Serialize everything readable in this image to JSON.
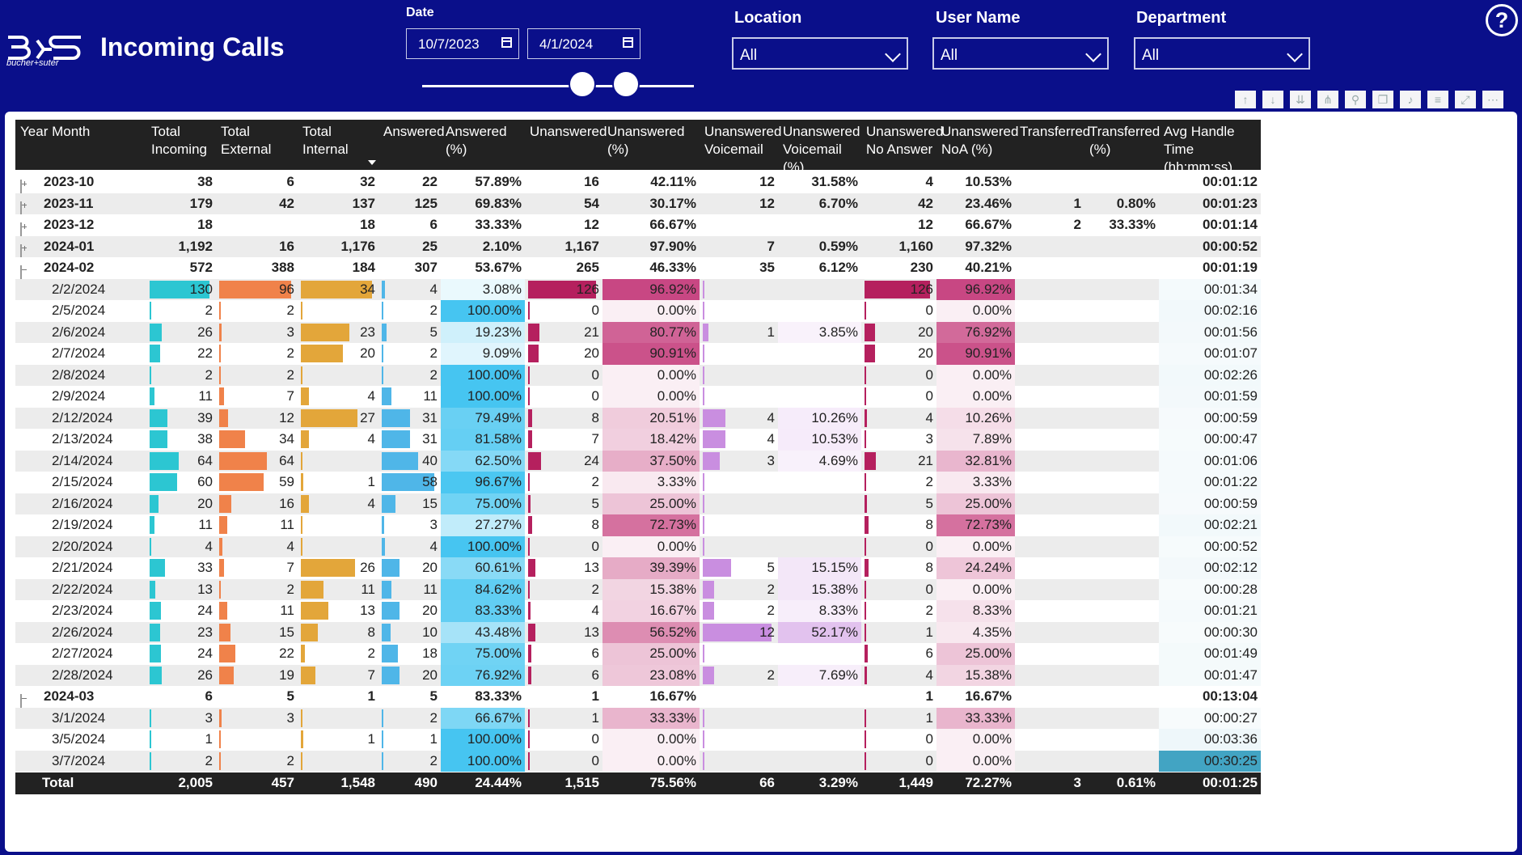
{
  "header": {
    "title": "Incoming Calls",
    "logo_sub": "bucher+suter",
    "date_label": "Date",
    "date_from": "10/7/2023",
    "date_to": "4/1/2024",
    "filters": [
      {
        "label": "Location",
        "value": "All"
      },
      {
        "label": "User Name",
        "value": "All"
      },
      {
        "label": "Department",
        "value": "All"
      }
    ],
    "help": "?"
  },
  "colors": {
    "header_bg": "#0a0f8a",
    "total_incoming": "#2cc6d2",
    "total_external": "#f0824a",
    "total_internal": "#e3a63a",
    "answered": "#4fb6e8",
    "answered_pct": "#3ec3f0",
    "unanswered": "#b5205e",
    "unanswered_pct": "#c43a7a",
    "voicemail": "#c98ee0",
    "aht": "#3aa0c0"
  },
  "table": {
    "columns": [
      "Year Month",
      "Total Incoming",
      "Total External",
      "Total Internal",
      "Answered",
      "Answered (%)",
      "Unanswered",
      "Unanswered (%)",
      "Unanswered Voicemail",
      "Unanswered Voicemail (%)",
      "Unanswered No Answer",
      "Unanswered NoA (%)",
      "Transferred",
      "Transferred (%)",
      "Avg Handle Time (hh:mm:ss)"
    ],
    "rows": [
      {
        "type": "month",
        "label": "2023-10",
        "expanded": false,
        "v": [
          "38",
          "6",
          "32",
          "22",
          "57.89%",
          "16",
          "42.11%",
          "12",
          "31.58%",
          "4",
          "10.53%",
          "",
          "",
          "00:01:12"
        ]
      },
      {
        "type": "month",
        "label": "2023-11",
        "expanded": false,
        "v": [
          "179",
          "42",
          "137",
          "125",
          "69.83%",
          "54",
          "30.17%",
          "12",
          "6.70%",
          "42",
          "23.46%",
          "1",
          "0.80%",
          "00:01:23"
        ]
      },
      {
        "type": "month",
        "label": "2023-12",
        "expanded": false,
        "v": [
          "18",
          "",
          "18",
          "6",
          "33.33%",
          "12",
          "66.67%",
          "",
          "",
          "12",
          "66.67%",
          "2",
          "33.33%",
          "00:01:14"
        ]
      },
      {
        "type": "month",
        "label": "2024-01",
        "expanded": false,
        "v": [
          "1,192",
          "16",
          "1,176",
          "25",
          "2.10%",
          "1,167",
          "97.90%",
          "7",
          "0.59%",
          "1,160",
          "97.32%",
          "",
          "",
          "00:00:52"
        ]
      },
      {
        "type": "month",
        "label": "2024-02",
        "expanded": true,
        "v": [
          "572",
          "388",
          "184",
          "307",
          "53.67%",
          "265",
          "46.33%",
          "35",
          "6.12%",
          "230",
          "40.21%",
          "",
          "",
          "00:01:19"
        ]
      },
      {
        "type": "day",
        "label": "2/2/2024",
        "v": [
          "130",
          "96",
          "34",
          "4",
          "3.08%",
          "126",
          "96.92%",
          "",
          "",
          "126",
          "96.92%",
          "",
          "",
          "00:01:34"
        ]
      },
      {
        "type": "day",
        "label": "2/5/2024",
        "v": [
          "2",
          "2",
          "",
          "2",
          "100.00%",
          "0",
          "0.00%",
          "",
          "",
          "0",
          "0.00%",
          "",
          "",
          "00:02:16"
        ]
      },
      {
        "type": "day",
        "label": "2/6/2024",
        "v": [
          "26",
          "3",
          "23",
          "5",
          "19.23%",
          "21",
          "80.77%",
          "1",
          "3.85%",
          "20",
          "76.92%",
          "",
          "",
          "00:01:56"
        ]
      },
      {
        "type": "day",
        "label": "2/7/2024",
        "v": [
          "22",
          "2",
          "20",
          "2",
          "9.09%",
          "20",
          "90.91%",
          "",
          "",
          "20",
          "90.91%",
          "",
          "",
          "00:01:07"
        ]
      },
      {
        "type": "day",
        "label": "2/8/2024",
        "v": [
          "2",
          "2",
          "",
          "2",
          "100.00%",
          "0",
          "0.00%",
          "",
          "",
          "0",
          "0.00%",
          "",
          "",
          "00:02:26"
        ]
      },
      {
        "type": "day",
        "label": "2/9/2024",
        "v": [
          "11",
          "7",
          "4",
          "11",
          "100.00%",
          "0",
          "0.00%",
          "",
          "",
          "0",
          "0.00%",
          "",
          "",
          "00:01:59"
        ]
      },
      {
        "type": "day",
        "label": "2/12/2024",
        "v": [
          "39",
          "12",
          "27",
          "31",
          "79.49%",
          "8",
          "20.51%",
          "4",
          "10.26%",
          "4",
          "10.26%",
          "",
          "",
          "00:00:59"
        ]
      },
      {
        "type": "day",
        "label": "2/13/2024",
        "v": [
          "38",
          "34",
          "4",
          "31",
          "81.58%",
          "7",
          "18.42%",
          "4",
          "10.53%",
          "3",
          "7.89%",
          "",
          "",
          "00:00:47"
        ]
      },
      {
        "type": "day",
        "label": "2/14/2024",
        "v": [
          "64",
          "64",
          "",
          "40",
          "62.50%",
          "24",
          "37.50%",
          "3",
          "4.69%",
          "21",
          "32.81%",
          "",
          "",
          "00:01:06"
        ]
      },
      {
        "type": "day",
        "label": "2/15/2024",
        "v": [
          "60",
          "59",
          "1",
          "58",
          "96.67%",
          "2",
          "3.33%",
          "",
          "",
          "2",
          "3.33%",
          "",
          "",
          "00:01:22"
        ]
      },
      {
        "type": "day",
        "label": "2/16/2024",
        "v": [
          "20",
          "16",
          "4",
          "15",
          "75.00%",
          "5",
          "25.00%",
          "",
          "",
          "5",
          "25.00%",
          "",
          "",
          "00:00:59"
        ]
      },
      {
        "type": "day",
        "label": "2/19/2024",
        "v": [
          "11",
          "11",
          "",
          "3",
          "27.27%",
          "8",
          "72.73%",
          "",
          "",
          "8",
          "72.73%",
          "",
          "",
          "00:02:21"
        ]
      },
      {
        "type": "day",
        "label": "2/20/2024",
        "v": [
          "4",
          "4",
          "",
          "4",
          "100.00%",
          "0",
          "0.00%",
          "",
          "",
          "0",
          "0.00%",
          "",
          "",
          "00:00:52"
        ]
      },
      {
        "type": "day",
        "label": "2/21/2024",
        "v": [
          "33",
          "7",
          "26",
          "20",
          "60.61%",
          "13",
          "39.39%",
          "5",
          "15.15%",
          "8",
          "24.24%",
          "",
          "",
          "00:02:12"
        ]
      },
      {
        "type": "day",
        "label": "2/22/2024",
        "v": [
          "13",
          "2",
          "11",
          "11",
          "84.62%",
          "2",
          "15.38%",
          "2",
          "15.38%",
          "0",
          "0.00%",
          "",
          "",
          "00:00:28"
        ]
      },
      {
        "type": "day",
        "label": "2/23/2024",
        "v": [
          "24",
          "11",
          "13",
          "20",
          "83.33%",
          "4",
          "16.67%",
          "2",
          "8.33%",
          "2",
          "8.33%",
          "",
          "",
          "00:01:21"
        ]
      },
      {
        "type": "day",
        "label": "2/26/2024",
        "v": [
          "23",
          "15",
          "8",
          "10",
          "43.48%",
          "13",
          "56.52%",
          "12",
          "52.17%",
          "1",
          "4.35%",
          "",
          "",
          "00:00:30"
        ]
      },
      {
        "type": "day",
        "label": "2/27/2024",
        "v": [
          "24",
          "22",
          "2",
          "18",
          "75.00%",
          "6",
          "25.00%",
          "",
          "",
          "6",
          "25.00%",
          "",
          "",
          "00:01:49"
        ]
      },
      {
        "type": "day",
        "label": "2/28/2024",
        "v": [
          "26",
          "19",
          "7",
          "20",
          "76.92%",
          "6",
          "23.08%",
          "2",
          "7.69%",
          "4",
          "15.38%",
          "",
          "",
          "00:01:47"
        ]
      },
      {
        "type": "month",
        "label": "2024-03",
        "expanded": true,
        "v": [
          "6",
          "5",
          "1",
          "5",
          "83.33%",
          "1",
          "16.67%",
          "",
          "",
          "1",
          "16.67%",
          "",
          "",
          "00:13:04"
        ]
      },
      {
        "type": "day",
        "label": "3/1/2024",
        "v": [
          "3",
          "3",
          "",
          "2",
          "66.67%",
          "1",
          "33.33%",
          "",
          "",
          "1",
          "33.33%",
          "",
          "",
          "00:00:27"
        ]
      },
      {
        "type": "day",
        "label": "3/5/2024",
        "v": [
          "1",
          "",
          "1",
          "1",
          "100.00%",
          "0",
          "0.00%",
          "",
          "",
          "0",
          "0.00%",
          "",
          "",
          "00:03:36"
        ]
      },
      {
        "type": "day",
        "label": "3/7/2024",
        "v": [
          "2",
          "2",
          "",
          "2",
          "100.00%",
          "0",
          "0.00%",
          "",
          "",
          "0",
          "0.00%",
          "",
          "",
          "00:30:25"
        ]
      }
    ],
    "total": {
      "label": "Total",
      "v": [
        "2,005",
        "457",
        "1,548",
        "490",
        "24.44%",
        "1,515",
        "75.56%",
        "66",
        "3.29%",
        "1,449",
        "72.27%",
        "3",
        "0.61%",
        "00:01:25"
      ]
    }
  }
}
